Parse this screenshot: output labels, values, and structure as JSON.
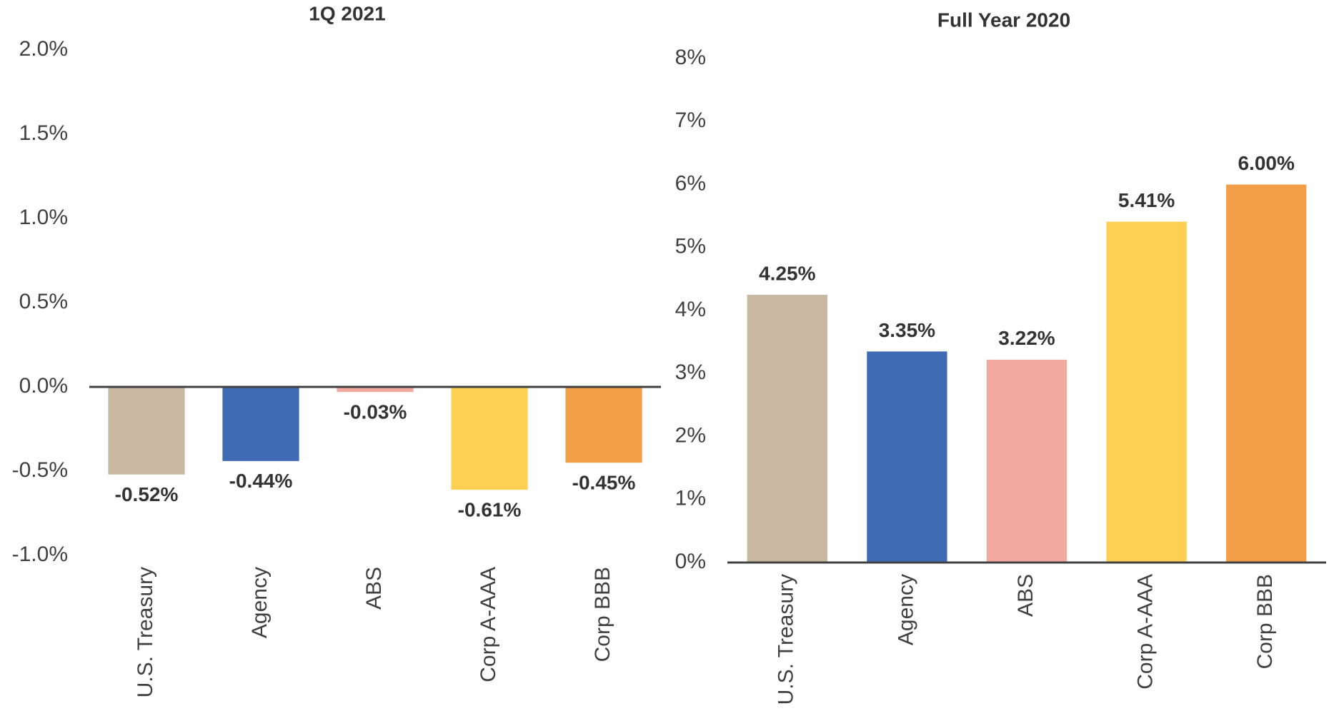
{
  "chart_data": [
    {
      "type": "bar",
      "title": "1Q 2021",
      "categories": [
        "U.S. Treasury",
        "Agency",
        "ABS",
        "Corp A-AAA",
        "Corp BBB"
      ],
      "values": [
        -0.52,
        -0.44,
        -0.03,
        -0.61,
        -0.45
      ],
      "value_labels": [
        "-0.52%",
        "-0.44%",
        "-0.03%",
        "-0.61%",
        "-0.45%"
      ],
      "colors": [
        "#c8b8a2",
        "#3f6bb5",
        "#f2a9a0",
        "#fdd053",
        "#f29d48"
      ],
      "ylim": [
        -1,
        2
      ],
      "yticks": [
        {
          "value": -1,
          "label": "-1.0%"
        },
        {
          "value": -0.5,
          "label": "-0.5%"
        },
        {
          "value": 0,
          "label": "0.0%"
        },
        {
          "value": 0.5,
          "label": "0.5%"
        },
        {
          "value": 1,
          "label": "1.0%"
        },
        {
          "value": 1.5,
          "label": "1.5%"
        },
        {
          "value": 2,
          "label": "2.0%"
        }
      ],
      "grid": false
    },
    {
      "type": "bar",
      "title": "Full Year 2020",
      "categories": [
        "U.S. Treasury",
        "Agency",
        "ABS",
        "Corp A-AAA",
        "Corp BBB"
      ],
      "values": [
        4.25,
        3.35,
        3.22,
        5.41,
        6.0
      ],
      "value_labels": [
        "4.25%",
        "3.35%",
        "3.22%",
        "5.41%",
        "6.00%"
      ],
      "colors": [
        "#c8b8a2",
        "#3f6bb5",
        "#f2a9a0",
        "#fdd053",
        "#f29d48"
      ],
      "ylim": [
        0,
        8
      ],
      "yticks": [
        {
          "value": 0,
          "label": "0%"
        },
        {
          "value": 1,
          "label": "1%"
        },
        {
          "value": 2,
          "label": "2%"
        },
        {
          "value": 3,
          "label": "3%"
        },
        {
          "value": 4,
          "label": "4%"
        },
        {
          "value": 5,
          "label": "5%"
        },
        {
          "value": 6,
          "label": "6%"
        },
        {
          "value": 7,
          "label": "7%"
        },
        {
          "value": 8,
          "label": "8%"
        }
      ],
      "grid": false
    }
  ]
}
